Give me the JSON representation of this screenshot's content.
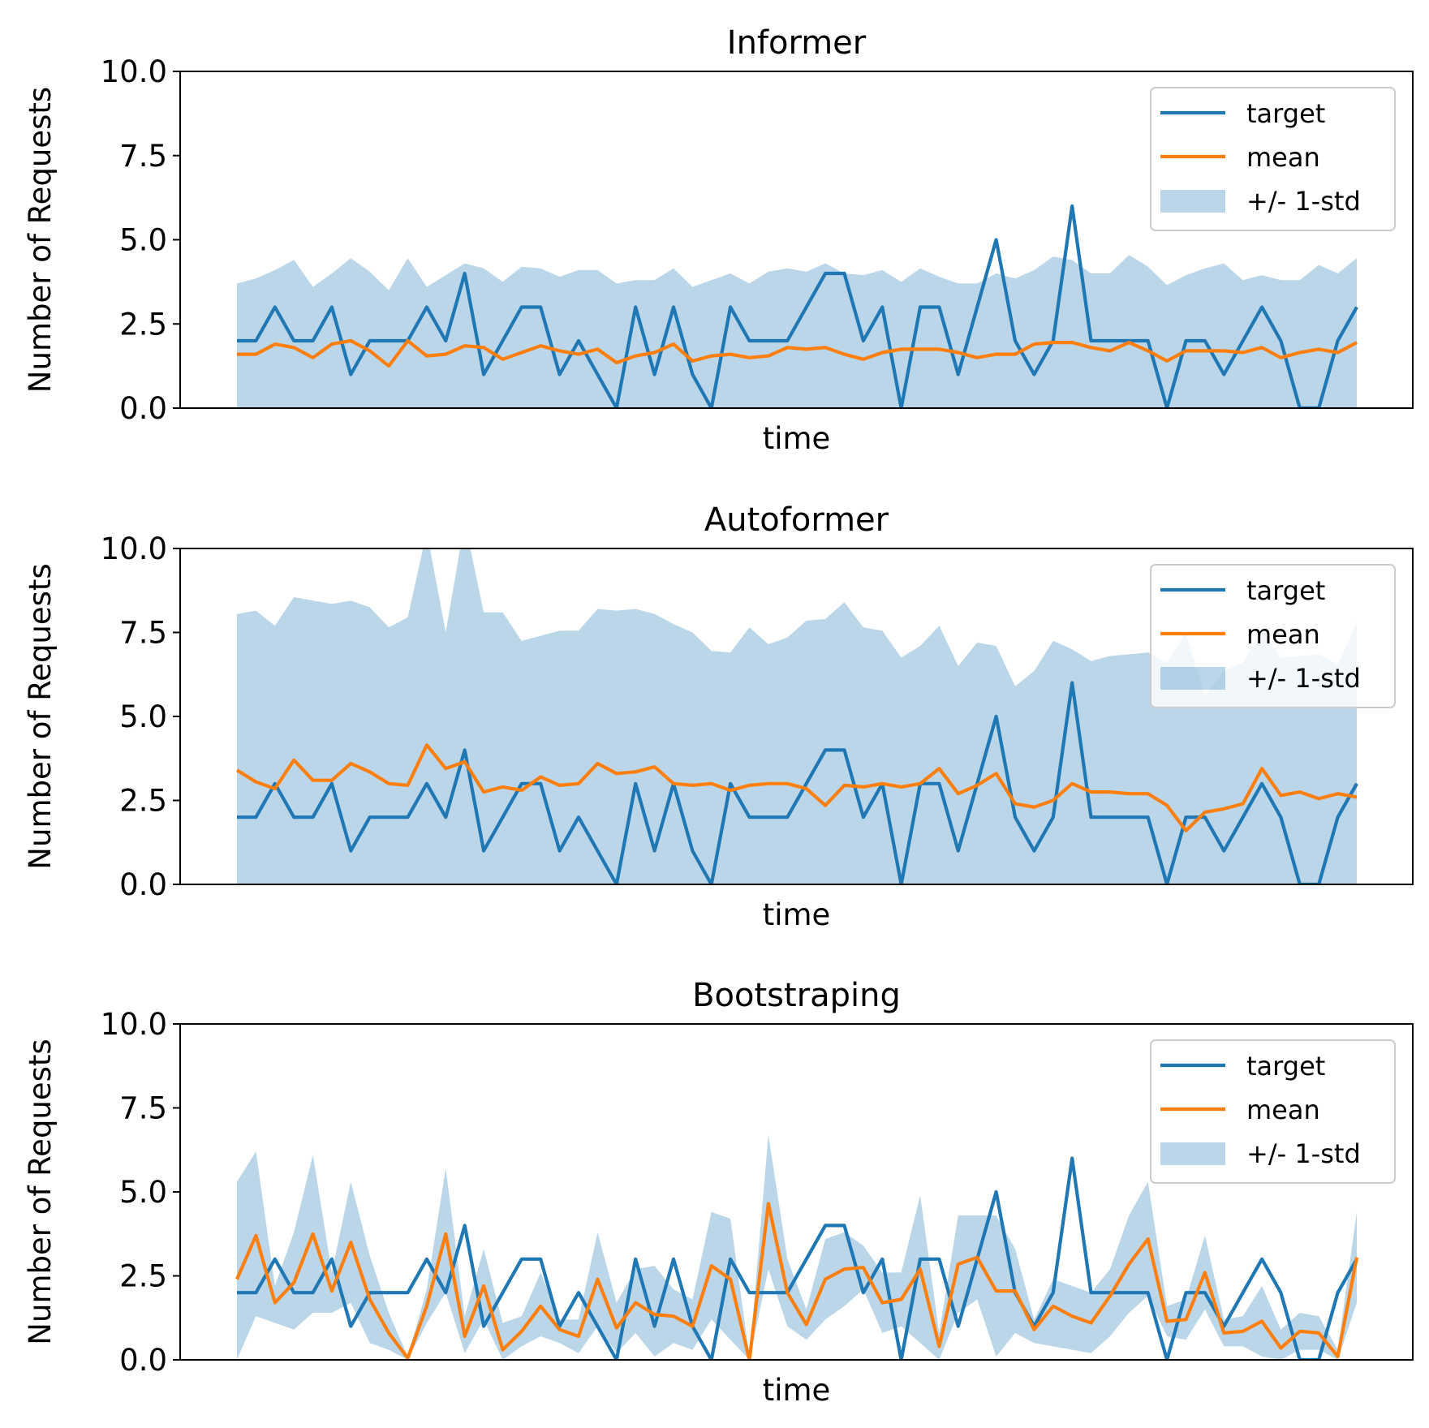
{
  "colors": {
    "target": "#1f77b4",
    "mean": "#ff7f0e",
    "band": "#1f77b4"
  },
  "legend": {
    "labels": [
      "target",
      "mean",
      "+/- 1-std"
    ],
    "placement": "top-right"
  },
  "chart_data": [
    {
      "type": "line",
      "title": "Informer",
      "xlabel": "time",
      "ylabel": "Number of Requests",
      "ylim": [
        0,
        10
      ],
      "yticks": [
        "0.0",
        "2.5",
        "5.0",
        "7.5",
        "10.0"
      ],
      "grid": false,
      "series": [
        {
          "name": "target",
          "values": [
            2,
            2,
            3,
            2,
            2,
            3,
            1,
            2,
            2,
            2,
            3,
            2,
            4,
            1,
            2,
            3,
            3,
            1,
            2,
            1,
            0,
            3,
            1,
            3,
            1,
            0,
            3,
            2,
            2,
            2,
            3,
            4,
            4,
            2,
            3,
            0,
            3,
            3,
            1,
            3,
            5,
            2,
            1,
            2,
            6,
            2,
            2,
            2,
            2,
            0,
            2,
            2,
            1,
            2,
            3,
            2,
            0,
            0,
            2,
            3
          ]
        },
        {
          "name": "mean",
          "values": [
            1.6,
            1.6,
            1.9,
            1.8,
            1.5,
            1.9,
            2.0,
            1.7,
            1.25,
            2.0,
            1.55,
            1.6,
            1.85,
            1.8,
            1.45,
            1.65,
            1.85,
            1.7,
            1.6,
            1.75,
            1.35,
            1.55,
            1.65,
            1.9,
            1.4,
            1.55,
            1.6,
            1.5,
            1.55,
            1.8,
            1.75,
            1.8,
            1.6,
            1.45,
            1.65,
            1.75,
            1.75,
            1.75,
            1.65,
            1.5,
            1.6,
            1.6,
            1.9,
            1.95,
            1.95,
            1.8,
            1.7,
            1.95,
            1.7,
            1.4,
            1.7,
            1.7,
            1.7,
            1.65,
            1.8,
            1.5,
            1.65,
            1.75,
            1.65,
            1.95
          ]
        },
        {
          "name": "+/- 1-std",
          "upper": [
            3.7,
            3.85,
            4.1,
            4.4,
            3.6,
            4.0,
            4.45,
            4.05,
            3.5,
            4.45,
            3.6,
            3.95,
            4.3,
            4.15,
            3.75,
            4.2,
            4.15,
            3.9,
            4.1,
            4.1,
            3.7,
            3.8,
            3.8,
            4.15,
            3.6,
            3.8,
            4.0,
            3.7,
            4.05,
            4.15,
            4.05,
            4.3,
            4.0,
            3.95,
            4.1,
            3.75,
            4.15,
            3.9,
            3.7,
            3.7,
            4.0,
            3.85,
            4.1,
            4.5,
            4.4,
            4.0,
            4.0,
            4.55,
            4.2,
            3.65,
            3.95,
            4.15,
            4.3,
            3.8,
            3.95,
            3.8,
            3.8,
            4.25,
            4.0,
            4.45
          ],
          "lower": [
            0,
            0,
            0,
            0,
            0,
            0,
            0,
            0,
            0,
            0,
            0,
            0,
            0,
            0,
            0,
            0,
            0,
            0,
            0,
            0,
            0,
            0,
            0,
            0,
            0,
            0,
            0,
            0,
            0,
            0,
            0,
            0,
            0,
            0,
            0,
            0,
            0,
            0,
            0,
            0,
            0,
            0,
            0,
            0,
            0,
            0,
            0,
            0,
            0,
            0,
            0,
            0,
            0,
            0,
            0,
            0,
            0,
            0,
            0,
            0
          ]
        }
      ]
    },
    {
      "type": "line",
      "title": "Autoformer",
      "xlabel": "time",
      "ylabel": "Number of Requests",
      "ylim": [
        0,
        10
      ],
      "yticks": [
        "0.0",
        "2.5",
        "5.0",
        "7.5",
        "10.0"
      ],
      "grid": false,
      "series": [
        {
          "name": "target",
          "values": [
            2,
            2,
            3,
            2,
            2,
            3,
            1,
            2,
            2,
            2,
            3,
            2,
            4,
            1,
            2,
            3,
            3,
            1,
            2,
            1,
            0,
            3,
            1,
            3,
            1,
            0,
            3,
            2,
            2,
            2,
            3,
            4,
            4,
            2,
            3,
            0,
            3,
            3,
            1,
            3,
            5,
            2,
            1,
            2,
            6,
            2,
            2,
            2,
            2,
            0,
            2,
            2,
            1,
            2,
            3,
            2,
            0,
            0,
            2,
            3
          ]
        },
        {
          "name": "mean",
          "values": [
            3.4,
            3.05,
            2.85,
            3.7,
            3.1,
            3.1,
            3.6,
            3.35,
            3.0,
            2.95,
            4.15,
            3.45,
            3.65,
            2.75,
            2.9,
            2.8,
            3.2,
            2.95,
            3.0,
            3.6,
            3.3,
            3.35,
            3.5,
            3.0,
            2.95,
            3.0,
            2.8,
            2.95,
            3.0,
            3.0,
            2.85,
            2.35,
            2.95,
            2.9,
            3.0,
            2.9,
            3.0,
            3.45,
            2.7,
            2.95,
            3.3,
            2.4,
            2.3,
            2.5,
            3.0,
            2.75,
            2.75,
            2.7,
            2.7,
            2.35,
            1.6,
            2.15,
            2.25,
            2.4,
            3.45,
            2.65,
            2.75,
            2.55,
            2.7,
            2.6
          ]
        },
        {
          "name": "+/- 1-std",
          "upper": [
            8.05,
            8.15,
            7.7,
            8.55,
            8.45,
            8.35,
            8.45,
            8.25,
            7.65,
            7.95,
            10.5,
            7.5,
            10.8,
            8.1,
            8.1,
            7.25,
            7.4,
            7.55,
            7.55,
            8.2,
            8.15,
            8.2,
            8.05,
            7.75,
            7.5,
            6.95,
            6.9,
            7.65,
            7.15,
            7.35,
            7.85,
            7.9,
            8.4,
            7.65,
            7.55,
            6.75,
            7.1,
            7.7,
            6.5,
            7.2,
            7.1,
            5.9,
            6.35,
            7.25,
            7.0,
            6.65,
            6.8,
            6.85,
            6.9,
            6.6,
            7.5,
            5.6,
            6.35,
            6.6,
            7.6,
            6.75,
            6.8,
            6.85,
            6.55,
            7.8
          ],
          "lower": [
            0,
            0,
            0,
            0,
            0,
            0,
            0,
            0,
            0,
            0,
            0,
            0,
            0,
            0,
            0,
            0,
            0,
            0,
            0,
            0,
            0,
            0,
            0,
            0,
            0,
            0,
            0,
            0,
            0,
            0,
            0,
            0,
            0,
            0,
            0,
            0,
            0,
            0,
            0,
            0,
            0,
            0,
            0,
            0,
            0,
            0,
            0,
            0,
            0,
            0,
            0,
            0,
            0,
            0,
            0,
            0,
            0,
            0,
            0,
            0
          ]
        }
      ]
    },
    {
      "type": "line",
      "title": "Bootstraping",
      "xlabel": "time",
      "ylabel": "Number of Requests",
      "ylim": [
        0,
        10
      ],
      "yticks": [
        "0.0",
        "2.5",
        "5.0",
        "7.5",
        "10.0"
      ],
      "grid": false,
      "series": [
        {
          "name": "target",
          "values": [
            2,
            2,
            3,
            2,
            2,
            3,
            1,
            2,
            2,
            2,
            3,
            2,
            4,
            1,
            2,
            3,
            3,
            1,
            2,
            1,
            0,
            3,
            1,
            3,
            1,
            0,
            3,
            2,
            2,
            2,
            3,
            4,
            4,
            2,
            3,
            0,
            3,
            3,
            1,
            3,
            5,
            2,
            1,
            2,
            6,
            2,
            2,
            2,
            2,
            0,
            2,
            2,
            1,
            2,
            3,
            2,
            0,
            0,
            2,
            3
          ]
        },
        {
          "name": "mean",
          "values": [
            2.4,
            3.7,
            1.7,
            2.3,
            3.75,
            2.05,
            3.5,
            1.8,
            0.8,
            0.05,
            1.6,
            3.75,
            0.7,
            2.2,
            0.3,
            0.85,
            1.6,
            0.9,
            0.7,
            2.4,
            0.95,
            1.7,
            1.35,
            1.3,
            1.0,
            2.8,
            2.4,
            0.0,
            4.65,
            2.0,
            1.05,
            2.4,
            2.7,
            2.75,
            1.7,
            1.8,
            2.7,
            0.4,
            2.85,
            3.05,
            2.05,
            2.05,
            0.9,
            1.6,
            1.3,
            1.1,
            1.9,
            2.85,
            3.6,
            1.15,
            1.2,
            2.6,
            0.8,
            0.85,
            1.15,
            0.35,
            0.85,
            0.8,
            0.1,
            3.05
          ]
        },
        {
          "name": "+/- 1-std",
          "upper": [
            5.3,
            6.2,
            2.2,
            3.8,
            6.1,
            2.6,
            5.3,
            3.1,
            1.4,
            0.1,
            2.1,
            5.7,
            1.3,
            3.3,
            1.1,
            1.3,
            2.6,
            1.2,
            1.2,
            3.8,
            1.7,
            2.7,
            2.8,
            2.1,
            1.8,
            4.4,
            4.2,
            0.1,
            6.7,
            3.0,
            1.5,
            3.6,
            3.8,
            3.4,
            2.6,
            2.6,
            4.9,
            0.8,
            4.3,
            4.3,
            4.3,
            3.3,
            1.2,
            2.4,
            2.2,
            2.0,
            2.7,
            4.3,
            5.3,
            1.6,
            1.8,
            3.7,
            1.2,
            1.3,
            2.2,
            0.9,
            1.4,
            1.3,
            0.3,
            4.4
          ],
          "lower": [
            0.0,
            1.3,
            1.1,
            0.9,
            1.4,
            1.4,
            1.7,
            0.5,
            0.3,
            0.0,
            1.1,
            2.0,
            0.2,
            1.2,
            0.0,
            0.4,
            0.7,
            0.5,
            0.2,
            1.0,
            0.2,
            0.8,
            0.1,
            0.5,
            0.3,
            1.2,
            0.6,
            0.0,
            2.7,
            1.0,
            0.6,
            1.2,
            1.6,
            2.1,
            0.8,
            1.0,
            0.5,
            0.0,
            1.4,
            1.8,
            0.1,
            0.8,
            0.5,
            0.4,
            0.3,
            0.2,
            0.7,
            1.4,
            1.9,
            0.7,
            0.6,
            1.5,
            0.4,
            0.4,
            0.1,
            0.0,
            0.3,
            0.3,
            0.0,
            1.7
          ]
        }
      ]
    }
  ]
}
